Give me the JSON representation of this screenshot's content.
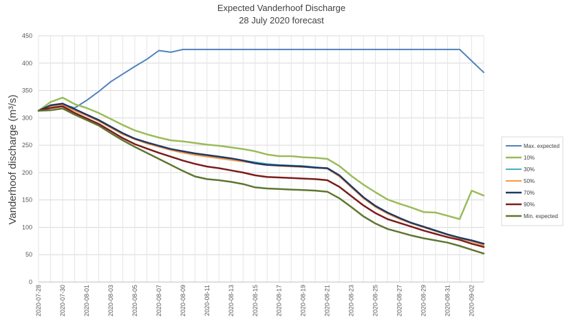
{
  "chart_data": {
    "type": "line",
    "title": "Expected Vanderhoof Discharge",
    "subtitle": "28 July 2020 forecast",
    "ylabel": "Vanderhoof discharge (m³/s)",
    "xlabel": "",
    "ylim": [
      0,
      450
    ],
    "yticks": [
      0,
      50,
      100,
      150,
      200,
      250,
      300,
      350,
      400,
      450
    ],
    "grid": true,
    "legend_position": "right",
    "x": [
      "2020-07-28",
      "2020-07-29",
      "2020-07-30",
      "2020-07-31",
      "2020-08-01",
      "2020-08-02",
      "2020-08-03",
      "2020-08-04",
      "2020-08-05",
      "2020-08-06",
      "2020-08-07",
      "2020-08-08",
      "2020-08-09",
      "2020-08-10",
      "2020-08-11",
      "2020-08-12",
      "2020-08-13",
      "2020-08-14",
      "2020-08-15",
      "2020-08-16",
      "2020-08-17",
      "2020-08-18",
      "2020-08-19",
      "2020-08-20",
      "2020-08-21",
      "2020-08-22",
      "2020-08-23",
      "2020-08-24",
      "2020-08-25",
      "2020-08-26",
      "2020-08-27",
      "2020-08-28",
      "2020-08-29",
      "2020-08-30",
      "2020-08-31",
      "2020-09-01",
      "2020-09-02",
      "2020-09-03"
    ],
    "xtick_labels": [
      "2020-07-28",
      "2020-07-30",
      "2020-08-01",
      "2020-08-03",
      "2020-08-05",
      "2020-08-07",
      "2020-08-09",
      "2020-08-11",
      "2020-08-13",
      "2020-08-15",
      "2020-08-17",
      "2020-08-19",
      "2020-08-21",
      "2020-08-23",
      "2020-08-25",
      "2020-08-27",
      "2020-08-29",
      "2020-08-31",
      "2020-09-02"
    ],
    "series": [
      {
        "name": "Max. expected",
        "color": "#4f81bd",
        "width": 2,
        "values": [
          313,
          320,
          325,
          318,
          332,
          348,
          366,
          380,
          394,
          407,
          423,
          420,
          425,
          425,
          425,
          425,
          425,
          425,
          425,
          425,
          425,
          425,
          425,
          425,
          425,
          425,
          425,
          425,
          425,
          425,
          425,
          425,
          425,
          425,
          425,
          425,
          404,
          383
        ]
      },
      {
        "name": "10%",
        "color": "#9bbb59",
        "width": 2.5,
        "values": [
          313,
          329,
          337,
          325,
          318,
          309,
          298,
          287,
          277,
          270,
          264,
          259,
          257,
          254,
          251,
          249,
          246,
          243,
          239,
          233,
          230,
          230,
          228,
          227,
          225,
          212,
          194,
          178,
          164,
          151,
          143,
          136,
          128,
          127,
          121,
          115,
          167,
          158
        ]
      },
      {
        "name": "30%",
        "color": "#4bacc6",
        "width": 2,
        "values": [
          313,
          322,
          325,
          316,
          306,
          296,
          283,
          272,
          262,
          255,
          248,
          242,
          238,
          234,
          231,
          228,
          225,
          222,
          219,
          216,
          214,
          213,
          212,
          210,
          208,
          195,
          175,
          155,
          139,
          127,
          117,
          108,
          100,
          93,
          86,
          80,
          74,
          67
        ]
      },
      {
        "name": "50%",
        "color": "#f79646",
        "width": 2,
        "values": [
          313,
          320,
          323,
          313,
          304,
          294,
          282,
          270,
          261,
          253,
          247,
          241,
          236,
          232,
          229,
          226,
          223,
          220,
          217,
          214,
          212,
          211,
          210,
          209,
          207,
          193,
          173,
          153,
          137,
          125,
          115,
          107,
          100,
          93,
          86,
          80,
          74,
          67
        ]
      },
      {
        "name": "70%",
        "color": "#1f3864",
        "width": 2.5,
        "values": [
          313,
          323,
          326,
          316,
          306,
          296,
          284,
          272,
          262,
          255,
          249,
          243,
          239,
          235,
          232,
          229,
          226,
          222,
          217,
          214,
          213,
          212,
          211,
          209,
          208,
          195,
          175,
          155,
          139,
          127,
          117,
          108,
          101,
          94,
          87,
          81,
          76,
          70
        ]
      },
      {
        "name": "90%",
        "color": "#7b1c1c",
        "width": 2.5,
        "values": [
          313,
          318,
          321,
          309,
          299,
          289,
          276,
          263,
          252,
          244,
          236,
          229,
          222,
          216,
          211,
          208,
          204,
          200,
          195,
          192,
          191,
          190,
          189,
          188,
          186,
          174,
          157,
          140,
          126,
          115,
          108,
          101,
          94,
          88,
          82,
          77,
          70,
          64
        ]
      },
      {
        "name": "Min. expected",
        "color": "#5f7530",
        "width": 2.5,
        "values": [
          313,
          314,
          317,
          306,
          296,
          286,
          272,
          259,
          247,
          236,
          225,
          214,
          203,
          193,
          188,
          186,
          183,
          179,
          173,
          171,
          170,
          169,
          168,
          167,
          165,
          153,
          137,
          120,
          107,
          97,
          91,
          85,
          80,
          76,
          72,
          66,
          59,
          52
        ]
      }
    ]
  }
}
